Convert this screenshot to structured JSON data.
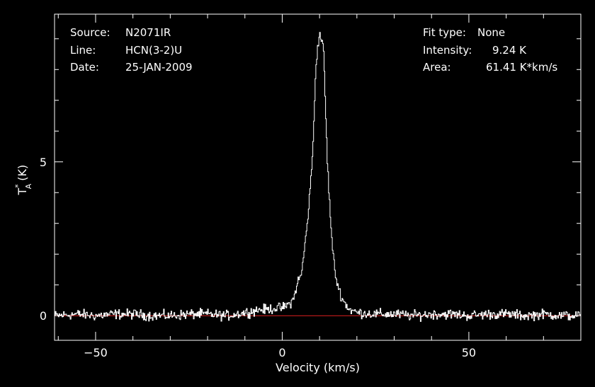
{
  "header": {
    "source_label": "Source:",
    "source_value": "N2071IR",
    "line_label": "Line:",
    "line_value": "HCN(3-2)U",
    "date_label": "Date:",
    "date_value": "25-JAN-2009",
    "fit_label": "Fit type:",
    "fit_value": "None",
    "intensity_label": "Intensity:",
    "intensity_value": "9.24 K",
    "area_label": "Area:",
    "area_value": "61.41 K*km/s"
  },
  "colors": {
    "background": "#000000",
    "axes": "#ffffff",
    "spectrum": "#ffffff",
    "baseline": "#e02020"
  },
  "chart_data": {
    "type": "line",
    "title": "",
    "xlabel": "Velocity (km/s)",
    "ylabel_main": "T",
    "ylabel_sub": "A",
    "ylabel_sup": "*",
    "ylabel_unit": "(K)",
    "xlim": [
      -61,
      80
    ],
    "ylim": [
      -0.8,
      9.8
    ],
    "xticks": [
      -50,
      0,
      50
    ],
    "xtick_labels": [
      "−50",
      "0",
      "50"
    ],
    "yticks": [
      0,
      5
    ],
    "ytick_labels": [
      "0",
      "5"
    ],
    "grid": false,
    "baseline_value": 0,
    "series": [
      {
        "x": [
          -61,
          -55,
          -50,
          -45,
          -40,
          -35,
          -30,
          -25,
          -20,
          -15,
          -10,
          -6,
          -4,
          -2,
          0,
          2,
          3,
          4,
          5,
          6,
          7,
          8,
          9,
          10,
          11,
          12,
          13,
          14,
          15,
          16,
          17,
          18,
          20,
          25,
          30,
          35,
          40,
          45,
          50,
          55,
          60,
          65,
          70,
          75,
          80
        ],
        "values": [
          0.0,
          0.05,
          0.0,
          0.05,
          0.05,
          0.0,
          0.0,
          0.05,
          0.05,
          0.0,
          0.1,
          0.2,
          0.2,
          0.25,
          0.25,
          0.4,
          0.55,
          1.1,
          1.3,
          2.3,
          3.5,
          5.1,
          8.3,
          9.2,
          8.6,
          5.0,
          2.8,
          1.4,
          0.9,
          0.55,
          0.35,
          0.2,
          0.1,
          0.05,
          0.05,
          0.0,
          0.05,
          0.05,
          0.0,
          0.05,
          0.05,
          0.0,
          0.05,
          0.0,
          0.0
        ],
        "noise_rms": 0.1
      }
    ]
  }
}
